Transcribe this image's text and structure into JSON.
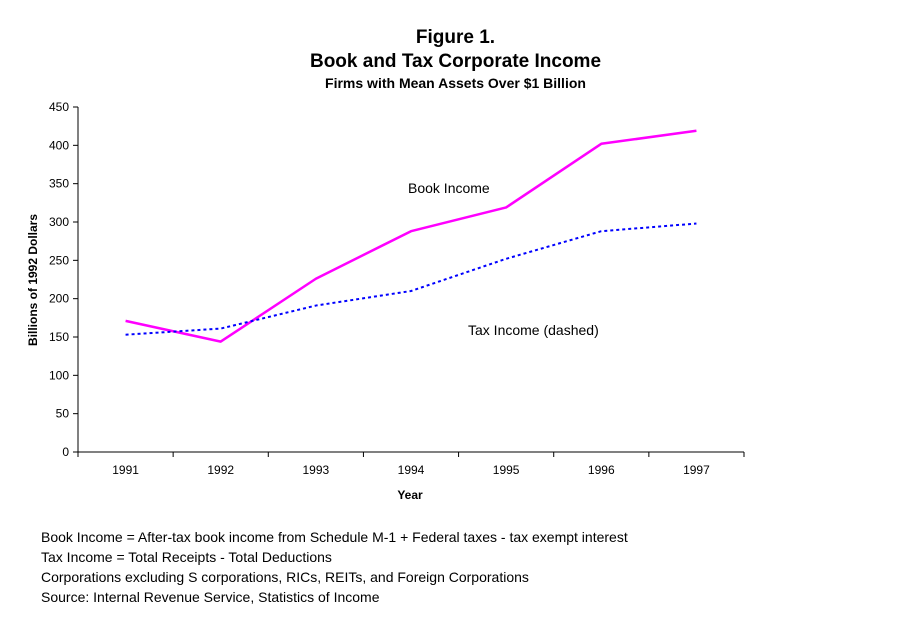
{
  "chart_data": {
    "type": "line",
    "figure_label": "Figure 1.",
    "title": "Book and Tax Corporate Income",
    "subtitle": "Firms with Mean Assets Over $1 Billion",
    "xlabel": "Year",
    "ylabel": "Billions of 1992 Dollars",
    "categories": [
      "1991",
      "1992",
      "1993",
      "1994",
      "1995",
      "1996",
      "1997"
    ],
    "ylim": [
      0,
      450
    ],
    "yticks": [
      0,
      50,
      100,
      150,
      200,
      250,
      300,
      350,
      400,
      450
    ],
    "grid": false,
    "legend": "none",
    "series": [
      {
        "name": "Book Income",
        "values": [
          171,
          144,
          226,
          288,
          319,
          402,
          419
        ],
        "color": "#ff00ff",
        "style": "solid"
      },
      {
        "name": "Tax Income (dashed)",
        "values": [
          153,
          161,
          191,
          210,
          252,
          288,
          298
        ],
        "color": "#0000ff",
        "style": "dashed"
      }
    ],
    "annotations": [
      "Book Income",
      "Tax Income (dashed)"
    ]
  },
  "notes": [
    "Book Income = After-tax book income from Schedule M-1 + Federal taxes - tax exempt interest",
    "Tax Income = Total Receipts - Total Deductions",
    "Corporations excluding S corporations, RICs, REITs, and Foreign Corporations",
    "Source: Internal Revenue Service, Statistics of Income"
  ]
}
